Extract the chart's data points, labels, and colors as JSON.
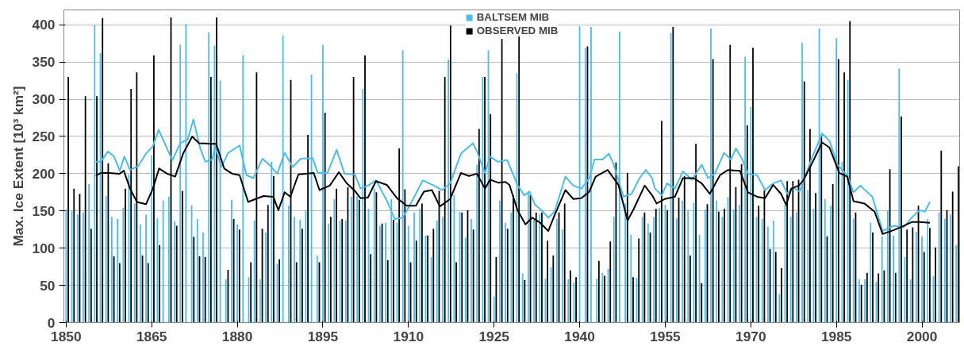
{
  "chart_data": {
    "type": "bar",
    "ylabel": "Max. Ice Extent [10³ km²]",
    "x": [
      1850,
      1851,
      1852,
      1853,
      1854,
      1855,
      1856,
      1857,
      1858,
      1859,
      1860,
      1861,
      1862,
      1863,
      1864,
      1865,
      1866,
      1867,
      1868,
      1869,
      1870,
      1871,
      1872,
      1873,
      1874,
      1875,
      1876,
      1877,
      1878,
      1879,
      1880,
      1881,
      1882,
      1883,
      1884,
      1885,
      1886,
      1887,
      1888,
      1889,
      1890,
      1891,
      1892,
      1893,
      1894,
      1895,
      1896,
      1897,
      1898,
      1899,
      1900,
      1901,
      1902,
      1903,
      1904,
      1905,
      1906,
      1907,
      1908,
      1909,
      1910,
      1911,
      1912,
      1913,
      1914,
      1915,
      1916,
      1917,
      1918,
      1919,
      1920,
      1921,
      1922,
      1923,
      1924,
      1925,
      1926,
      1927,
      1928,
      1929,
      1930,
      1931,
      1932,
      1933,
      1934,
      1935,
      1936,
      1937,
      1938,
      1939,
      1940,
      1941,
      1942,
      1943,
      1944,
      1945,
      1946,
      1947,
      1948,
      1949,
      1950,
      1951,
      1952,
      1953,
      1954,
      1955,
      1956,
      1957,
      1958,
      1959,
      1960,
      1961,
      1962,
      1963,
      1964,
      1965,
      1966,
      1967,
      1968,
      1969,
      1970,
      1971,
      1972,
      1973,
      1974,
      1975,
      1976,
      1977,
      1978,
      1979,
      1980,
      1981,
      1982,
      1983,
      1984,
      1985,
      1986,
      1987,
      1988,
      1989,
      1990,
      1991,
      1992,
      1993,
      1994,
      1995,
      1996,
      1997,
      1998,
      1999,
      2000,
      2001,
      2002,
      2003,
      2004,
      2005,
      2006
    ],
    "series": [
      {
        "name": "BALTSEM MIB",
        "color": "#4bbde8",
        "values": [
          152,
          150,
          145,
          148,
          186,
          400,
          362,
          170,
          142,
          139,
          154,
          199,
          160,
          132,
          145,
          225,
          140,
          164,
          169,
          136,
          373,
          401,
          158,
          139,
          121,
          390,
          372,
          325,
          58,
          165,
          132,
          359,
          61,
          137,
          58,
          121,
          216,
          79,
          386,
          157,
          142,
          138,
          151,
          333,
          90,
          373,
          133,
          166,
          137,
          137,
          169,
          170,
          314,
          153,
          180,
          130,
          134,
          166,
          134,
          366,
          130,
          148,
          153,
          117,
          88,
          137,
          142,
          353,
          171,
          149,
          114,
          139,
          212,
          330,
          366,
          35,
          164,
          134,
          148,
          335,
          66,
          176,
          138,
          146,
          59,
          74,
          139,
          125,
          58,
          54,
          398,
          369,
          397,
          59,
          67,
          72,
          142,
          391,
          160,
          118,
          60,
          142,
          133,
          142,
          154,
          158,
          389,
          140,
          164,
          151,
          161,
          118,
          152,
          395,
          164,
          142,
          169,
          152,
          158,
          357,
          290,
          142,
          139,
          129,
          137,
          38,
          158,
          142,
          148,
          376,
          178,
          153,
          395,
          166,
          157,
          382,
          216,
          326,
          140,
          58,
          58,
          134,
          55,
          116,
          151,
          117,
          341,
          88,
          58,
          122,
          116,
          139,
          62,
          148,
          139,
          145,
          104
        ]
      },
      {
        "name": "OBSERVED MIB",
        "color": "#000000",
        "values": [
          330,
          180,
          173,
          304,
          126,
          304,
          409,
          214,
          89,
          80,
          180,
          314,
          336,
          90,
          80,
          359,
          104,
          null,
          410,
          130,
          177,
          null,
          115,
          89,
          88,
          330,
          410,
          null,
          71,
          139,
          125,
          null,
          81,
          336,
          126,
          158,
          197,
          85,
          null,
          326,
          81,
          126,
          252,
          null,
          81,
          282,
          142,
          180,
          139,
          182,
          330,
          165,
          359,
          92,
          175,
          133,
          84,
          138,
          234,
          179,
          81,
          110,
          160,
          117,
          126,
          177,
          330,
          399,
          81,
          148,
          151,
          125,
          260,
          330,
          280,
          88,
          381,
          126,
          171,
          390,
          57,
          171,
          148,
          148,
          110,
          90,
          148,
          160,
          70,
          61,
          null,
          371,
          null,
          83,
          63,
          109,
          215,
          null,
          201,
          61,
          113,
          148,
          121,
          153,
          271,
          151,
          397,
          168,
          197,
          90,
          240,
          53,
          159,
          354,
          149,
          153,
          373,
          182,
          213,
          265,
          369,
          157,
          178,
          99,
          95,
          73,
          190,
          190,
          192,
          324,
          260,
          174,
          252,
          116,
          186,
          354,
          336,
          405,
          148,
          51,
          67,
          121,
          66,
          70,
          206,
          67,
          277,
          125,
          128,
          157,
          95,
          127,
          101,
          231,
          151,
          176,
          210
        ]
      },
      {
        "type": "line",
        "color": "#4bbde8",
        "x": [
          1855.2,
          1856.1,
          1857.3,
          1858.4,
          1859.4,
          1860.2,
          1861.2,
          1862.6,
          1864.0,
          1865.2,
          1866.2,
          1867.5,
          1868.6,
          1870.0,
          1871.3,
          1872.3,
          1873.5,
          1874.4,
          1875.6,
          1876.1,
          1877.2,
          1878.4,
          1880.4,
          1881.6,
          1882.8,
          1884.4,
          1885.6,
          1887.0,
          1888.3,
          1889.7,
          1891.1,
          1893.2,
          1894.1,
          1895.8,
          1897.4,
          1898.8,
          1900.6,
          1901.6,
          1902.9,
          1904.3,
          1906.2,
          1907.6,
          1909.0,
          1910.4,
          1912.5,
          1914.5,
          1915.9,
          1917.3,
          1919.2,
          1921.3,
          1922.0,
          1923.4,
          1924.3,
          1925.7,
          1927.0,
          1927.3,
          1929.1,
          1930.3,
          1931.2,
          1932.2,
          1933.3,
          1934.5,
          1935.6,
          1937.5,
          1938.9,
          1940.3,
          1941.7,
          1942.6,
          1944.0,
          1945.1,
          1945.8,
          1947.7,
          1949.1,
          1950.5,
          1951.6,
          1952.7,
          1953.2,
          1954.4,
          1955.3,
          1956.7,
          1958.1,
          1959.7,
          1961.4,
          1962.5,
          1963.7,
          1965.3,
          1966.5,
          1967.4,
          1968.5,
          1969.5,
          1971.1,
          1972.5,
          1973.9,
          1975.3,
          1976.4,
          1977.4,
          1978.5,
          1979.2,
          1980.6,
          1982.5,
          1983.8,
          1985.2,
          1986.9,
          1988.0,
          1989.2,
          1991.3,
          1993.1,
          1995.0,
          1996.8,
          1998.2,
          1999.6,
          2000.5,
          2001.4
        ],
        "values": [
          216,
          216,
          230,
          223,
          204,
          223,
          205,
          210,
          227,
          237,
          259,
          237,
          218,
          241,
          246,
          273,
          234,
          216,
          219,
          237,
          209,
          228,
          238,
          198,
          194,
          220,
          212,
          200,
          228,
          209,
          220,
          221,
          201,
          201,
          232,
          200,
          199,
          180,
          184,
          191,
          164,
          139,
          141,
          160,
          191,
          184,
          178,
          187,
          227,
          241,
          230,
          201,
          223,
          216,
          218,
          218,
          185,
          171,
          176,
          158,
          151,
          141,
          149,
          196,
          184,
          180,
          194,
          219,
          219,
          227,
          216,
          169,
          173,
          194,
          205,
          194,
          180,
          171,
          187,
          180,
          203,
          192,
          212,
          194,
          200,
          228,
          219,
          234,
          219,
          200,
          198,
          178,
          187,
          191,
          173,
          182,
          176,
          189,
          219,
          254,
          244,
          212,
          198,
          175,
          184,
          169,
          123,
          130,
          128,
          141,
          151,
          149,
          162
        ]
      },
      {
        "type": "line",
        "color": "#000000",
        "x": [
          1855.2,
          1856.1,
          1857.5,
          1859.4,
          1860.1,
          1861.2,
          1862.4,
          1864.0,
          1865.2,
          1866.3,
          1867.7,
          1869.1,
          1870.5,
          1872.1,
          1873.3,
          1875.6,
          1876.3,
          1877.7,
          1879.1,
          1880.4,
          1881.9,
          1883.2,
          1884.6,
          1886.3,
          1887.2,
          1888.3,
          1889.3,
          1890.7,
          1893.4,
          1894.4,
          1896.2,
          1897.8,
          1899.2,
          1900.6,
          1901.6,
          1902.9,
          1904.3,
          1906.2,
          1908.0,
          1909.7,
          1911.3,
          1912.7,
          1914.1,
          1915.5,
          1917.3,
          1919.2,
          1920.6,
          1922.0,
          1923.4,
          1924.3,
          1925.7,
          1927.0,
          1927.7,
          1929.1,
          1930.5,
          1931.7,
          1933.1,
          1934.5,
          1935.6,
          1937.5,
          1938.9,
          1940.3,
          1941.7,
          1942.8,
          1944.9,
          1946.8,
          1948.4,
          1949.5,
          1951.4,
          1952.7,
          1953.5,
          1954.9,
          1956.7,
          1958.1,
          1960.0,
          1961.4,
          1962.8,
          1964.6,
          1966.0,
          1968.1,
          1969.5,
          1971.1,
          1972.5,
          1973.9,
          1975.3,
          1976.2,
          1977.1,
          1978.4,
          1979.2,
          1980.6,
          1982.5,
          1983.8,
          1985.5,
          1986.9,
          1988.0,
          1989.9,
          1991.7,
          1993.1,
          1995.0,
          1996.8,
          1998.2,
          1999.6,
          2001.4
        ],
        "values": [
          197,
          201,
          201,
          200,
          204,
          180,
          162,
          159,
          180,
          207,
          200,
          196,
          227,
          250,
          241,
          240,
          240,
          207,
          200,
          198,
          162,
          166,
          170,
          169,
          151,
          175,
          169,
          199,
          201,
          178,
          184,
          202,
          187,
          177,
          167,
          168,
          190,
          185,
          167,
          157,
          157,
          176,
          178,
          156,
          166,
          201,
          197,
          200,
          180,
          192,
          188,
          189,
          185,
          151,
          132,
          141,
          134,
          123,
          144,
          178,
          166,
          167,
          176,
          196,
          205,
          185,
          137,
          153,
          184,
          171,
          160,
          166,
          169,
          194,
          194,
          187,
          173,
          198,
          205,
          204,
          175,
          169,
          167,
          185,
          173,
          158,
          180,
          184,
          191,
          212,
          242,
          235,
          201,
          196,
          163,
          160,
          149,
          119,
          124,
          130,
          135,
          135,
          134
        ]
      }
    ],
    "xlim": [
      1849.6,
      2006.6
    ],
    "ylim": [
      0,
      420
    ],
    "xticks": [
      1850,
      1865,
      1880,
      1895,
      1910,
      1925,
      1940,
      1955,
      1970,
      1985,
      2000
    ],
    "yticks": [
      0,
      50,
      100,
      150,
      200,
      250,
      300,
      350,
      400
    ],
    "grid": "y",
    "legend": "top"
  }
}
